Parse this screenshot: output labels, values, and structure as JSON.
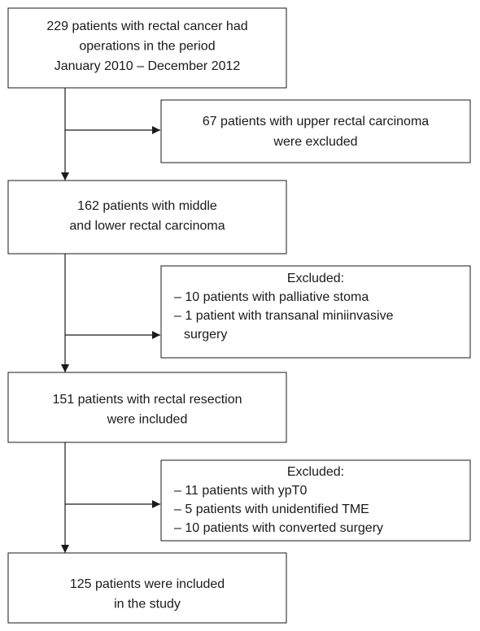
{
  "nodes": [
    {
      "lines": [
        "229 patients with rectal cancer had",
        "operations in the period",
        "January 2010 – December 2012"
      ]
    },
    {
      "lines": [
        "162 patients with middle",
        "and lower rectal carcinoma"
      ]
    },
    {
      "lines": [
        "151 patients with rectal resection",
        "were included"
      ]
    },
    {
      "lines": [
        "125 patients were included",
        "in the study"
      ]
    }
  ],
  "exclusions": [
    {
      "lines": [
        "67 patients with upper rectal carcinoma",
        "were excluded"
      ]
    },
    {
      "title": "Excluded:",
      "items": [
        {
          "lines": [
            "– 10 patients with palliative stoma"
          ]
        },
        {
          "lines": [
            "– 1 patient with transanal miniinvasive",
            "surgery"
          ]
        }
      ]
    },
    {
      "title": "Excluded:",
      "items": [
        {
          "lines": [
            "– 11 patients with ypT0"
          ]
        },
        {
          "lines": [
            "– 5 patients with unidentified TME"
          ]
        },
        {
          "lines": [
            "– 10 patients with converted surgery"
          ]
        }
      ]
    }
  ]
}
